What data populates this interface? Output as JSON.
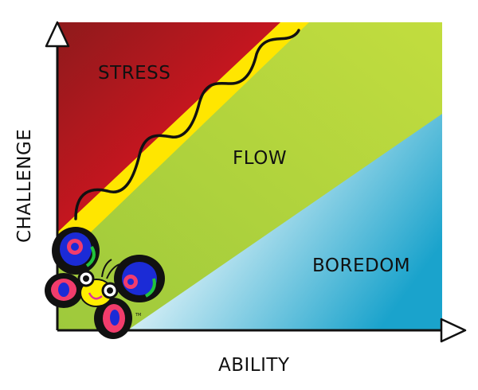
{
  "zones": {
    "stress": "STRESS",
    "flow": "FLOW",
    "boredom": "BOREDOM"
  },
  "axes": {
    "y_label": "CHALLENGE",
    "x_label": "ABILITY"
  },
  "logo": {
    "mark": "TM"
  },
  "colors": {
    "stress": "#c4161f",
    "stress_dark": "#8e1a1c",
    "channel": "#ffe600",
    "flow": "#a6cf3a",
    "boredom": "#1aa3cc"
  }
}
